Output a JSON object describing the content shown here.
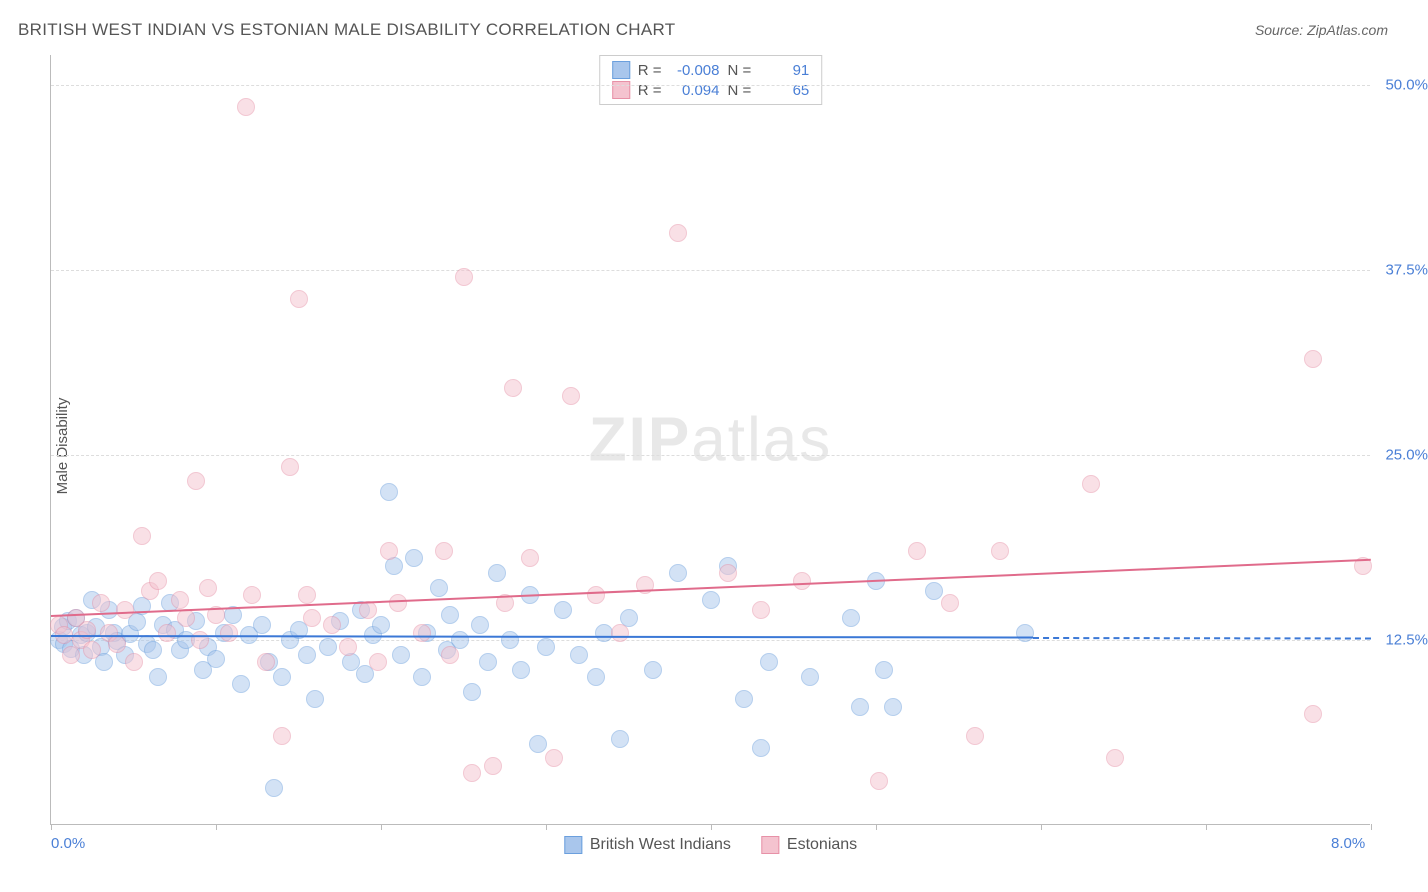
{
  "chart": {
    "type": "scatter",
    "title": "BRITISH WEST INDIAN VS ESTONIAN MALE DISABILITY CORRELATION CHART",
    "source": "Source: ZipAtlas.com",
    "y_axis_label": "Male Disability",
    "watermark_bold": "ZIP",
    "watermark_light": "atlas",
    "background_color": "#ffffff",
    "grid_color": "#dddddd",
    "axis_color": "#bbbbbb",
    "title_color": "#555555",
    "tick_label_color": "#4a7fd6",
    "xlim": [
      0,
      8
    ],
    "ylim": [
      0,
      52
    ],
    "x_ticks": [
      0,
      1,
      2,
      3,
      4,
      5,
      6,
      7,
      8
    ],
    "x_tick_labels": {
      "0": "0.0%",
      "8": "8.0%"
    },
    "y_gridlines": [
      12.5,
      25.0,
      37.5,
      50.0
    ],
    "y_tick_labels": [
      "12.5%",
      "25.0%",
      "37.5%",
      "50.0%"
    ],
    "marker_radius": 9,
    "marker_opacity": 0.5,
    "marker_stroke_width": 1.2,
    "title_fontsize": 17,
    "label_fontsize": 15,
    "series": [
      {
        "name": "British West Indians",
        "fill_color": "#a9c6ec",
        "stroke_color": "#6b9fdd",
        "r": "-0.008",
        "n": "91",
        "trend": {
          "x1": 0.0,
          "y1": 12.8,
          "x2": 5.95,
          "y2": 12.7,
          "color": "#3b78d6",
          "width": 2,
          "dash_x2": 8.0
        },
        "points": [
          [
            0.05,
            12.5
          ],
          [
            0.07,
            13.4
          ],
          [
            0.08,
            12.2
          ],
          [
            0.1,
            13.8
          ],
          [
            0.12,
            11.9
          ],
          [
            0.15,
            14.0
          ],
          [
            0.18,
            12.8
          ],
          [
            0.2,
            11.5
          ],
          [
            0.22,
            13.0
          ],
          [
            0.25,
            15.2
          ],
          [
            0.27,
            13.4
          ],
          [
            0.3,
            12.0
          ],
          [
            0.32,
            11.0
          ],
          [
            0.35,
            14.5
          ],
          [
            0.38,
            13.0
          ],
          [
            0.4,
            12.4
          ],
          [
            0.45,
            11.5
          ],
          [
            0.48,
            12.9
          ],
          [
            0.52,
            13.7
          ],
          [
            0.55,
            14.8
          ],
          [
            0.58,
            12.2
          ],
          [
            0.62,
            11.8
          ],
          [
            0.65,
            10.0
          ],
          [
            0.68,
            13.5
          ],
          [
            0.72,
            15.0
          ],
          [
            0.75,
            13.2
          ],
          [
            0.78,
            11.8
          ],
          [
            0.82,
            12.5
          ],
          [
            0.88,
            13.8
          ],
          [
            0.92,
            10.5
          ],
          [
            0.95,
            12.0
          ],
          [
            1.0,
            11.2
          ],
          [
            1.05,
            13.0
          ],
          [
            1.1,
            14.2
          ],
          [
            1.15,
            9.5
          ],
          [
            1.2,
            12.8
          ],
          [
            1.28,
            13.5
          ],
          [
            1.32,
            11.0
          ],
          [
            1.35,
            2.5
          ],
          [
            1.4,
            10.0
          ],
          [
            1.45,
            12.5
          ],
          [
            1.5,
            13.2
          ],
          [
            1.55,
            11.5
          ],
          [
            1.6,
            8.5
          ],
          [
            1.68,
            12.0
          ],
          [
            1.75,
            13.8
          ],
          [
            1.82,
            11.0
          ],
          [
            1.88,
            14.5
          ],
          [
            1.9,
            10.2
          ],
          [
            1.95,
            12.8
          ],
          [
            2.0,
            13.5
          ],
          [
            2.05,
            22.5
          ],
          [
            2.08,
            17.5
          ],
          [
            2.12,
            11.5
          ],
          [
            2.2,
            18.0
          ],
          [
            2.25,
            10.0
          ],
          [
            2.28,
            13.0
          ],
          [
            2.35,
            16.0
          ],
          [
            2.4,
            11.8
          ],
          [
            2.42,
            14.2
          ],
          [
            2.48,
            12.5
          ],
          [
            2.55,
            9.0
          ],
          [
            2.6,
            13.5
          ],
          [
            2.65,
            11.0
          ],
          [
            2.7,
            17.0
          ],
          [
            2.78,
            12.5
          ],
          [
            2.85,
            10.5
          ],
          [
            2.9,
            15.5
          ],
          [
            2.95,
            5.5
          ],
          [
            3.0,
            12.0
          ],
          [
            3.1,
            14.5
          ],
          [
            3.2,
            11.5
          ],
          [
            3.3,
            10.0
          ],
          [
            3.35,
            13.0
          ],
          [
            3.45,
            5.8
          ],
          [
            3.5,
            14.0
          ],
          [
            3.65,
            10.5
          ],
          [
            3.8,
            17.0
          ],
          [
            4.0,
            15.2
          ],
          [
            4.1,
            17.5
          ],
          [
            4.2,
            8.5
          ],
          [
            4.3,
            5.2
          ],
          [
            4.35,
            11.0
          ],
          [
            4.6,
            10.0
          ],
          [
            4.85,
            14.0
          ],
          [
            4.9,
            8.0
          ],
          [
            5.0,
            16.5
          ],
          [
            5.05,
            10.5
          ],
          [
            5.1,
            8.0
          ],
          [
            5.35,
            15.8
          ],
          [
            5.9,
            13.0
          ]
        ]
      },
      {
        "name": "Estonians",
        "fill_color": "#f4c3cf",
        "stroke_color": "#e791a7",
        "r": "0.094",
        "n": "65",
        "trend": {
          "x1": 0.0,
          "y1": 14.2,
          "x2": 8.0,
          "y2": 18.0,
          "color": "#e06b8b",
          "width": 2
        },
        "points": [
          [
            0.05,
            13.5
          ],
          [
            0.08,
            12.8
          ],
          [
            0.12,
            11.5
          ],
          [
            0.15,
            14.0
          ],
          [
            0.18,
            12.5
          ],
          [
            0.22,
            13.2
          ],
          [
            0.25,
            11.8
          ],
          [
            0.3,
            15.0
          ],
          [
            0.35,
            13.0
          ],
          [
            0.4,
            12.2
          ],
          [
            0.45,
            14.5
          ],
          [
            0.5,
            11.0
          ],
          [
            0.55,
            19.5
          ],
          [
            0.6,
            15.8
          ],
          [
            0.65,
            16.5
          ],
          [
            0.7,
            13.0
          ],
          [
            0.78,
            15.2
          ],
          [
            0.82,
            14.0
          ],
          [
            0.88,
            23.2
          ],
          [
            0.9,
            12.5
          ],
          [
            0.95,
            16.0
          ],
          [
            1.0,
            14.2
          ],
          [
            1.08,
            13.0
          ],
          [
            1.18,
            48.5
          ],
          [
            1.22,
            15.5
          ],
          [
            1.3,
            11.0
          ],
          [
            1.4,
            6.0
          ],
          [
            1.45,
            24.2
          ],
          [
            1.5,
            35.5
          ],
          [
            1.58,
            14.0
          ],
          [
            1.55,
            15.5
          ],
          [
            1.7,
            13.5
          ],
          [
            1.8,
            12.0
          ],
          [
            1.92,
            14.5
          ],
          [
            1.98,
            11.0
          ],
          [
            2.05,
            18.5
          ],
          [
            2.1,
            15.0
          ],
          [
            2.25,
            13.0
          ],
          [
            2.38,
            18.5
          ],
          [
            2.42,
            11.5
          ],
          [
            2.5,
            37.0
          ],
          [
            2.55,
            3.5
          ],
          [
            2.68,
            4.0
          ],
          [
            2.75,
            15.0
          ],
          [
            2.8,
            29.5
          ],
          [
            2.9,
            18.0
          ],
          [
            3.05,
            4.5
          ],
          [
            3.15,
            29.0
          ],
          [
            3.3,
            15.5
          ],
          [
            3.45,
            13.0
          ],
          [
            3.6,
            16.2
          ],
          [
            3.8,
            40.0
          ],
          [
            4.1,
            17.0
          ],
          [
            4.3,
            14.5
          ],
          [
            4.55,
            16.5
          ],
          [
            5.02,
            3.0
          ],
          [
            5.25,
            18.5
          ],
          [
            5.45,
            15.0
          ],
          [
            5.6,
            6.0
          ],
          [
            5.75,
            18.5
          ],
          [
            6.3,
            23.0
          ],
          [
            6.45,
            4.5
          ],
          [
            7.65,
            31.5
          ],
          [
            7.65,
            7.5
          ],
          [
            7.95,
            17.5
          ]
        ]
      }
    ],
    "top_legend_labels": {
      "r": "R =",
      "n": "N ="
    },
    "bottom_legend": [
      {
        "label": "British West Indians",
        "fill": "#a9c6ec",
        "stroke": "#6b9fdd"
      },
      {
        "label": "Estonians",
        "fill": "#f4c3cf",
        "stroke": "#e791a7"
      }
    ]
  }
}
